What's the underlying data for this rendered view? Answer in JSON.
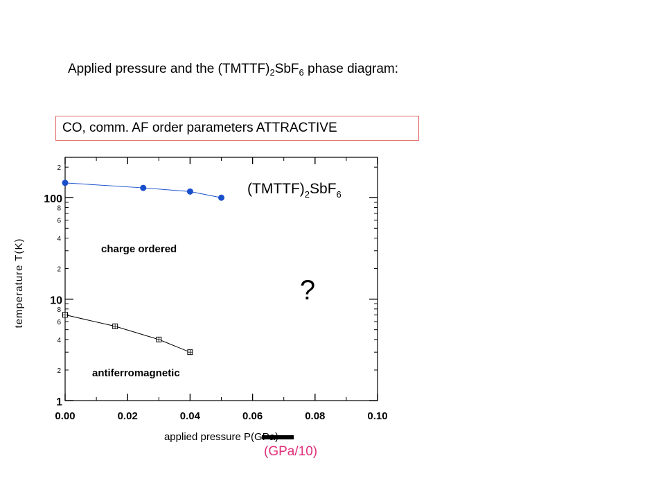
{
  "slide_title": {
    "text_pre": "Applied pressure and the (TMTTF)",
    "sub1": "2",
    "text_mid": "SbF",
    "sub2": "6",
    "text_post": " phase diagram:"
  },
  "note_box": {
    "text": "CO, comm. AF order parameters ATTRACTIVE",
    "border_color": "#e06666"
  },
  "unit_note": {
    "text": "(GPa/10)",
    "color": "#e0307a"
  },
  "chart_data": {
    "type": "scatter",
    "title": "",
    "xlabel": "applied pressure P(GPa)",
    "ylabel": "temperature T(K)",
    "xlim": [
      0,
      0.1
    ],
    "ylim": [
      1,
      250
    ],
    "y_scale": "log",
    "grid": false,
    "x_ticks": [
      "0.00",
      "0.02",
      "0.04",
      "0.06",
      "0.08",
      "0.10"
    ],
    "y_major_ticks": [
      {
        "value": 1,
        "label": "1"
      },
      {
        "value": 10,
        "label": "10"
      },
      {
        "value": 100,
        "label": "100"
      }
    ],
    "y_minor_ticks": [
      {
        "value": 2,
        "label": "2"
      },
      {
        "value": 4,
        "label": "4"
      },
      {
        "value": 6,
        "label": "6"
      },
      {
        "value": 8,
        "label": "8"
      },
      {
        "value": 20,
        "label": "2"
      },
      {
        "value": 40,
        "label": "4"
      },
      {
        "value": 60,
        "label": "6"
      },
      {
        "value": 80,
        "label": "8"
      },
      {
        "value": 200,
        "label": "2"
      }
    ],
    "series": [
      {
        "marker": "filled-circle",
        "color": "#1a4fcc",
        "x": [
          0.0,
          0.025,
          0.04,
          0.05
        ],
        "y": [
          140,
          125,
          115,
          100
        ]
      },
      {
        "marker": "open-square",
        "color": "#000000",
        "x": [
          0.0,
          0.016,
          0.03,
          0.04
        ],
        "y": [
          7.0,
          5.4,
          4.0,
          3.0
        ]
      }
    ],
    "annotations": {
      "compound": {
        "pre": "(TMTTF)",
        "sub1": "2",
        "mid": "SbF",
        "sub2": "6"
      },
      "charge_ordered": "charge ordered",
      "antiferromagnetic": "antiferromagnetic",
      "question": "?"
    }
  }
}
